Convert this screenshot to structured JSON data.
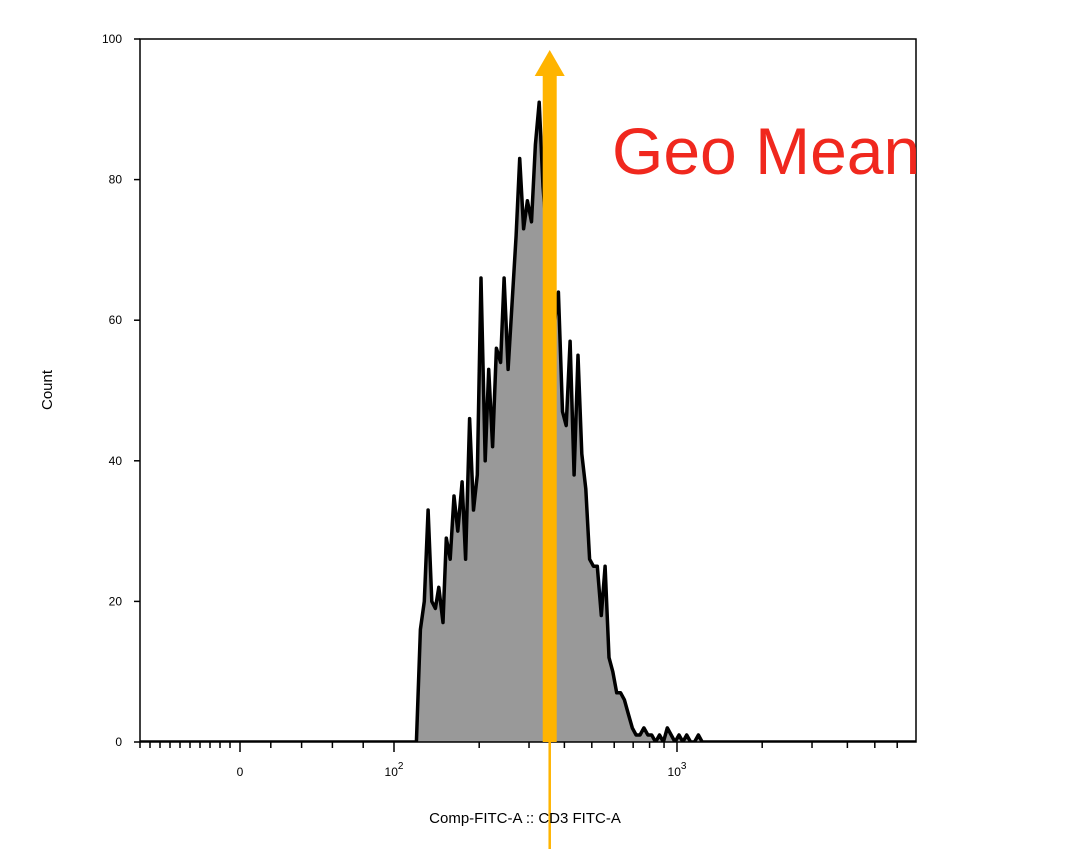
{
  "chart_data": {
    "type": "area",
    "title": "",
    "xlabel": "Comp-FITC-A :: CD3 FITC-A",
    "ylabel": "Count",
    "y_scale": "linear",
    "ylim": [
      0,
      100
    ],
    "y_ticks": [
      {
        "value": 0,
        "label": "0"
      },
      {
        "value": 20,
        "label": "20"
      },
      {
        "value": 40,
        "label": "40"
      },
      {
        "value": 60,
        "label": "60"
      },
      {
        "value": 80,
        "label": "80"
      },
      {
        "value": 100,
        "label": "100"
      }
    ],
    "x_scale": "biexponential",
    "x_ticks": [
      {
        "value": 0,
        "base": "0",
        "exp": ""
      },
      {
        "value": 100,
        "base": "10",
        "exp": "2"
      },
      {
        "value": 1000,
        "base": "10",
        "exp": "3"
      }
    ],
    "grid": false,
    "series": [
      {
        "color": "#999999",
        "edge_color": "#000000",
        "x": [
          120,
          124,
          128,
          132,
          136,
          140,
          144,
          149,
          153,
          158,
          163,
          168,
          174,
          179,
          185,
          191,
          197,
          203,
          210,
          216,
          223,
          230,
          238,
          245,
          253,
          261,
          270,
          278,
          287,
          296,
          306,
          316,
          326,
          336,
          347,
          358,
          370,
          381,
          394,
          406,
          419,
          433,
          447,
          461,
          476,
          491,
          507,
          523,
          540,
          557,
          575,
          593,
          612,
          632,
          652,
          673,
          695,
          717,
          740,
          764,
          789,
          814,
          840,
          867,
          895,
          924,
          954,
          984,
          1016,
          1049,
          1082,
          1117,
          1153,
          1190,
          1228,
          1268
        ],
        "values": [
          0,
          16,
          20,
          33,
          20,
          19,
          22,
          17,
          29,
          26,
          35,
          30,
          37,
          26,
          46,
          33,
          38,
          66,
          40,
          53,
          42,
          56,
          54,
          66,
          53,
          62,
          72,
          83,
          73,
          77,
          74,
          85,
          91,
          79,
          72,
          73,
          60,
          64,
          47,
          45,
          57,
          38,
          55,
          41,
          36,
          26,
          25,
          25,
          18,
          25,
          12,
          10,
          7,
          7,
          6,
          4,
          2,
          1,
          1,
          2,
          1,
          1,
          0,
          1,
          0,
          2,
          1,
          0,
          1,
          0,
          1,
          0,
          0,
          1,
          0,
          0
        ]
      }
    ],
    "annotations": [
      {
        "kind": "arrow",
        "label": "Geo Mean",
        "x_value": 355,
        "color": "#ffb400",
        "label_color": "#f0281e"
      }
    ]
  }
}
